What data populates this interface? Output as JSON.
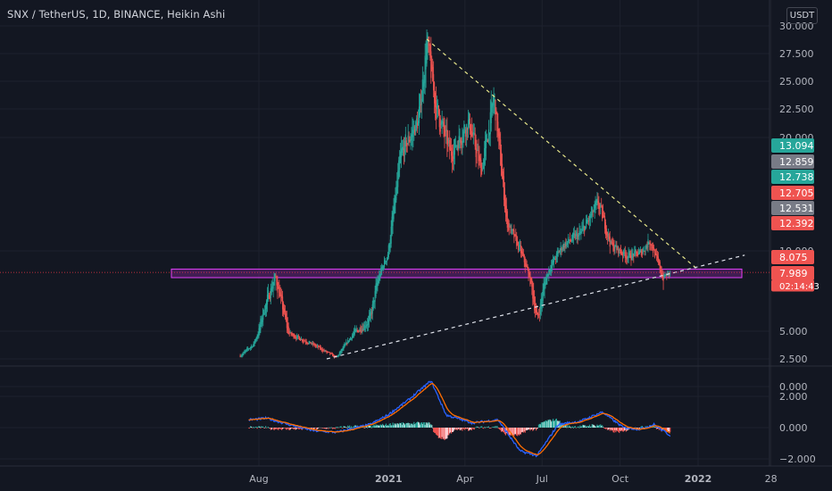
{
  "header": {
    "symbol_title": "SNX / TetherUS, 1D, BINANCE, Heikin Ashi",
    "currency_button": "USDT"
  },
  "colors": {
    "background": "#131722",
    "grid": "#1e222d",
    "axis_text": "#b2b5be",
    "up": "#26a69a",
    "down": "#ef5350",
    "zone_fill": "#9c27b0",
    "zone_border": "#e040fb",
    "trend_upper": "#e6e68a",
    "trend_lower": "#e0e3eb",
    "macd_line": "#2962ff",
    "signal_line": "#ff6d00",
    "price_line": "#f23645"
  },
  "chart_data": {
    "type": "candlestick",
    "x_tick_labels": [
      "Aug",
      "2021",
      "Apr",
      "Jul",
      "Oct",
      "2022",
      "28"
    ],
    "y_tick_labels": [
      "30.000",
      "27.500",
      "25.000",
      "22.500",
      "20.000",
      "10.000",
      "5.000",
      "2.500",
      "0.000"
    ],
    "ylim": [
      0,
      30.5
    ],
    "price_waypoints": [
      {
        "date": "2020-07-10",
        "price": 2.8
      },
      {
        "date": "2020-07-25",
        "price": 3.8
      },
      {
        "date": "2020-08-05",
        "price": 5.8
      },
      {
        "date": "2020-08-20",
        "price": 7.6
      },
      {
        "date": "2020-09-05",
        "price": 4.8
      },
      {
        "date": "2020-10-01",
        "price": 3.9
      },
      {
        "date": "2020-10-31",
        "price": 2.6
      },
      {
        "date": "2020-11-20",
        "price": 4.8
      },
      {
        "date": "2020-12-10",
        "price": 5.6
      },
      {
        "date": "2020-12-31",
        "price": 9.8
      },
      {
        "date": "2021-01-15",
        "price": 18.5
      },
      {
        "date": "2021-02-05",
        "price": 21.5
      },
      {
        "date": "2021-02-15",
        "price": 28.6
      },
      {
        "date": "2021-02-25",
        "price": 22.8
      },
      {
        "date": "2021-03-15",
        "price": 18.5
      },
      {
        "date": "2021-04-05",
        "price": 21.5
      },
      {
        "date": "2021-04-20",
        "price": 17.0
      },
      {
        "date": "2021-05-05",
        "price": 23.5
      },
      {
        "date": "2021-05-20",
        "price": 12.5
      },
      {
        "date": "2021-06-05",
        "price": 10.0
      },
      {
        "date": "2021-06-25",
        "price": 5.5
      },
      {
        "date": "2021-07-10",
        "price": 8.5
      },
      {
        "date": "2021-07-25",
        "price": 10.5
      },
      {
        "date": "2021-08-15",
        "price": 11.5
      },
      {
        "date": "2021-09-05",
        "price": 14.2
      },
      {
        "date": "2021-09-20",
        "price": 10.5
      },
      {
        "date": "2021-10-10",
        "price": 9.5
      },
      {
        "date": "2021-10-25",
        "price": 9.8
      },
      {
        "date": "2021-11-05",
        "price": 11.0
      },
      {
        "date": "2021-11-20",
        "price": 7.5
      },
      {
        "date": "2021-11-29",
        "price": 7.99
      }
    ],
    "support_zone": {
      "low": 7.5,
      "high": 8.3
    },
    "trendline_upper": {
      "from": {
        "date": "2021-02-15",
        "price": 28.8
      },
      "to": {
        "date": "2021-12-31",
        "price": 8.3
      }
    },
    "trendline_lower": {
      "from": {
        "date": "2020-10-20",
        "price": 2.5
      },
      "to": {
        "date": "2022-02-25",
        "price": 9.6
      }
    },
    "price_labels": [
      {
        "text": "13.094",
        "color": "#26a69a"
      },
      {
        "text": "12.859",
        "color": "#787b86"
      },
      {
        "text": "12.738",
        "color": "#26a69a"
      },
      {
        "text": "12.705",
        "color": "#ef5350"
      },
      {
        "text": "12.531",
        "color": "#787b86"
      },
      {
        "text": "12.392",
        "color": "#ef5350"
      },
      {
        "text": "8.075",
        "color": "#ef5350"
      },
      {
        "text": "7.989",
        "color": "#ef5350"
      },
      {
        "text": "02:14:43",
        "color": "#ef5350"
      }
    ],
    "macd": {
      "y_tick_labels": [
        "2.000",
        "0.000",
        "−2.000"
      ],
      "ylim": [
        -2.3,
        3.0
      ],
      "waypoints": [
        {
          "date": "2020-07-20",
          "value": 0.5
        },
        {
          "date": "2020-08-10",
          "value": 0.6
        },
        {
          "date": "2020-09-05",
          "value": 0.2
        },
        {
          "date": "2020-10-05",
          "value": -0.2
        },
        {
          "date": "2020-11-01",
          "value": -0.3
        },
        {
          "date": "2020-12-10",
          "value": 0.2
        },
        {
          "date": "2020-12-31",
          "value": 0.8
        },
        {
          "date": "2021-01-25",
          "value": 1.8
        },
        {
          "date": "2021-02-20",
          "value": 3.0
        },
        {
          "date": "2021-03-10",
          "value": 0.8
        },
        {
          "date": "2021-04-10",
          "value": 0.3
        },
        {
          "date": "2021-05-10",
          "value": 0.5
        },
        {
          "date": "2021-06-05",
          "value": -1.5
        },
        {
          "date": "2021-06-25",
          "value": -1.8
        },
        {
          "date": "2021-07-20",
          "value": 0.2
        },
        {
          "date": "2021-08-15",
          "value": 0.4
        },
        {
          "date": "2021-09-10",
          "value": 1.0
        },
        {
          "date": "2021-10-05",
          "value": 0.0
        },
        {
          "date": "2021-10-25",
          "value": -0.1
        },
        {
          "date": "2021-11-10",
          "value": 0.2
        },
        {
          "date": "2021-11-29",
          "value": -0.5
        }
      ]
    }
  }
}
